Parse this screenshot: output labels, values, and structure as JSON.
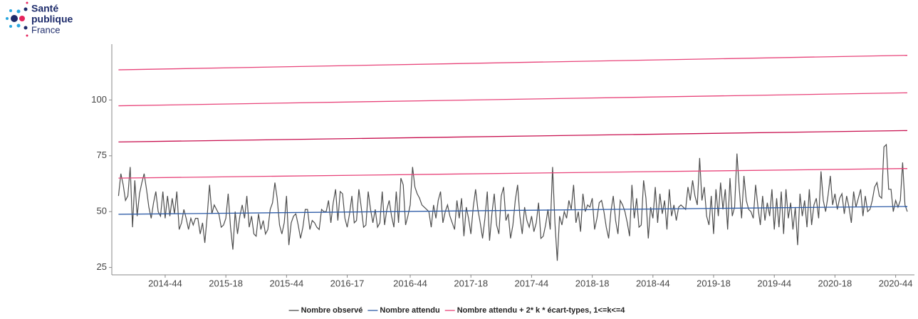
{
  "logo": {
    "line1": "Santé",
    "line2": "publique",
    "line3": "France"
  },
  "chart_data": {
    "type": "line",
    "categories": [
      null,
      null,
      null,
      null,
      null,
      null,
      null,
      null,
      null,
      null,
      null,
      null,
      null,
      null,
      null,
      null,
      null,
      null,
      null,
      null,
      "2014-44",
      null,
      null,
      null,
      null,
      null,
      null,
      null,
      null,
      null,
      null,
      null,
      null,
      null,
      null,
      null,
      null,
      null,
      null,
      null,
      null,
      null,
      null,
      null,
      null,
      null,
      "2015-18",
      null,
      null,
      null,
      null,
      null,
      null,
      null,
      null,
      null,
      null,
      null,
      null,
      null,
      null,
      null,
      null,
      null,
      null,
      null,
      null,
      null,
      null,
      null,
      null,
      null,
      "2015-44",
      null,
      null,
      null,
      null,
      null,
      null,
      null,
      null,
      null,
      null,
      null,
      null,
      null,
      null,
      null,
      null,
      null,
      null,
      null,
      null,
      null,
      null,
      null,
      null,
      null,
      "2016-17",
      null,
      null,
      null,
      null,
      null,
      null,
      null,
      null,
      null,
      null,
      null,
      null,
      null,
      null,
      null,
      null,
      null,
      null,
      null,
      null,
      null,
      null,
      null,
      null,
      null,
      null,
      "2016-44",
      null,
      null,
      null,
      null,
      null,
      null,
      null,
      null,
      null,
      null,
      null,
      null,
      null,
      null,
      null,
      null,
      null,
      null,
      null,
      null,
      null,
      null,
      null,
      null,
      null,
      "2017-18",
      null,
      null,
      null,
      null,
      null,
      null,
      null,
      null,
      null,
      null,
      null,
      null,
      null,
      null,
      null,
      null,
      null,
      null,
      null,
      null,
      null,
      null,
      null,
      null,
      null,
      "2017-44",
      null,
      null,
      null,
      null,
      null,
      null,
      null,
      null,
      null,
      null,
      null,
      null,
      null,
      null,
      null,
      null,
      null,
      null,
      null,
      null,
      null,
      null,
      null,
      null,
      null,
      "2018-18",
      null,
      null,
      null,
      null,
      null,
      null,
      null,
      null,
      null,
      null,
      null,
      null,
      null,
      null,
      null,
      null,
      null,
      null,
      null,
      null,
      null,
      null,
      null,
      null,
      null,
      "2018-44",
      null,
      null,
      null,
      null,
      null,
      null,
      null,
      null,
      null,
      null,
      null,
      null,
      null,
      null,
      null,
      null,
      null,
      null,
      null,
      null,
      null,
      null,
      null,
      null,
      null,
      "2019-18",
      null,
      null,
      null,
      null,
      null,
      null,
      null,
      null,
      null,
      null,
      null,
      null,
      null,
      null,
      null,
      null,
      null,
      null,
      null,
      null,
      null,
      null,
      null,
      null,
      null,
      "2019-44",
      null,
      null,
      null,
      null,
      null,
      null,
      null,
      null,
      null,
      null,
      null,
      null,
      null,
      null,
      null,
      null,
      null,
      null,
      null,
      null,
      null,
      null,
      null,
      null,
      null,
      "2020-18",
      null,
      null,
      null,
      null,
      null,
      null,
      null,
      null,
      null,
      null,
      null,
      null,
      null,
      null,
      null,
      null,
      null,
      null,
      null,
      null,
      null,
      null,
      null,
      null,
      null,
      "2020-44",
      null,
      null,
      null,
      null,
      null
    ],
    "series": [
      {
        "name": "Nombre observé",
        "color": "#4d4d4d",
        "values": [
          57,
          67,
          62,
          55,
          57,
          70,
          43,
          64,
          48,
          58,
          63,
          67,
          60,
          52,
          47,
          54,
          59,
          50,
          48,
          59,
          47,
          57,
          48,
          56,
          49,
          59,
          42,
          45,
          51,
          47,
          42,
          47,
          44,
          47,
          47,
          40,
          45,
          36,
          48,
          62,
          49,
          53,
          51,
          49,
          43,
          44,
          47,
          58,
          43,
          33,
          50,
          40,
          48,
          53,
          47,
          57,
          43,
          48,
          40,
          39,
          49,
          42,
          46,
          40,
          42,
          51,
          54,
          63,
          56,
          44,
          40,
          45,
          57,
          35,
          45,
          48,
          49,
          44,
          38,
          43,
          51,
          51,
          42,
          46,
          45,
          43,
          42,
          51,
          50,
          50,
          55,
          45,
          54,
          60,
          46,
          59,
          58,
          47,
          43,
          49,
          57,
          45,
          46,
          60,
          52,
          43,
          44,
          59,
          51,
          45,
          51,
          43,
          45,
          59,
          44,
          51,
          55,
          48,
          43,
          59,
          45,
          65,
          62,
          44,
          48,
          53,
          70,
          61,
          58,
          56,
          53,
          52,
          51,
          50,
          43,
          53,
          47,
          55,
          59,
          45,
          50,
          53,
          48,
          45,
          42,
          55,
          47,
          56,
          39,
          52,
          47,
          40,
          52,
          60,
          51,
          45,
          38,
          47,
          59,
          37,
          49,
          58,
          44,
          40,
          57,
          61,
          46,
          49,
          38,
          44,
          55,
          62,
          48,
          40,
          52,
          46,
          43,
          48,
          41,
          45,
          54,
          38,
          39,
          44,
          51,
          42,
          70,
          45,
          28,
          48,
          44,
          50,
          47,
          55,
          51,
          62,
          45,
          50,
          41,
          58,
          50,
          53,
          52,
          56,
          42,
          47,
          54,
          55,
          50,
          43,
          38,
          50,
          57,
          46,
          40,
          55,
          53,
          50,
          45,
          39,
          62,
          47,
          56,
          43,
          44,
          64,
          56,
          38,
          52,
          47,
          61,
          45,
          58,
          49,
          55,
          42,
          60,
          48,
          53,
          46,
          52,
          53,
          52,
          51,
          61,
          55,
          64,
          57,
          53,
          74,
          55,
          61,
          48,
          44,
          57,
          40,
          60,
          48,
          63,
          51,
          60,
          42,
          65,
          48,
          52,
          76,
          60,
          47,
          66,
          55,
          51,
          50,
          47,
          62,
          52,
          44,
          57,
          46,
          54,
          48,
          60,
          42,
          56,
          43,
          59,
          40,
          60,
          47,
          54,
          42,
          52,
          35,
          58,
          48,
          55,
          43,
          60,
          44,
          53,
          56,
          47,
          68,
          55,
          50,
          57,
          66,
          53,
          58,
          51,
          56,
          58,
          49,
          57,
          52,
          45,
          59,
          52,
          56,
          60,
          48,
          57,
          50,
          51,
          55,
          61,
          63,
          57,
          56,
          79,
          80,
          60,
          60,
          50,
          55,
          52,
          55,
          72,
          53,
          50
        ]
      },
      {
        "name": "Nombre attendu",
        "color": "#2f5da8",
        "endpoints": [
          48.8,
          52.3
        ]
      },
      {
        "name": "Nombre attendu + 2* k * écart-types, 1<=k<=4",
        "color": "#e8447a",
        "line_colors": [
          "#e8447a",
          "#c8104f",
          "#e8447a",
          "#e8447a"
        ],
        "endpoints": [
          [
            65,
            69.3
          ],
          [
            81.2,
            86.3
          ],
          [
            97.4,
            103.2
          ],
          [
            113.5,
            120
          ]
        ]
      }
    ],
    "ylim": [
      22,
      125
    ],
    "yticks": [
      25,
      50,
      75,
      100
    ],
    "grid": false,
    "legend": "bottom"
  }
}
